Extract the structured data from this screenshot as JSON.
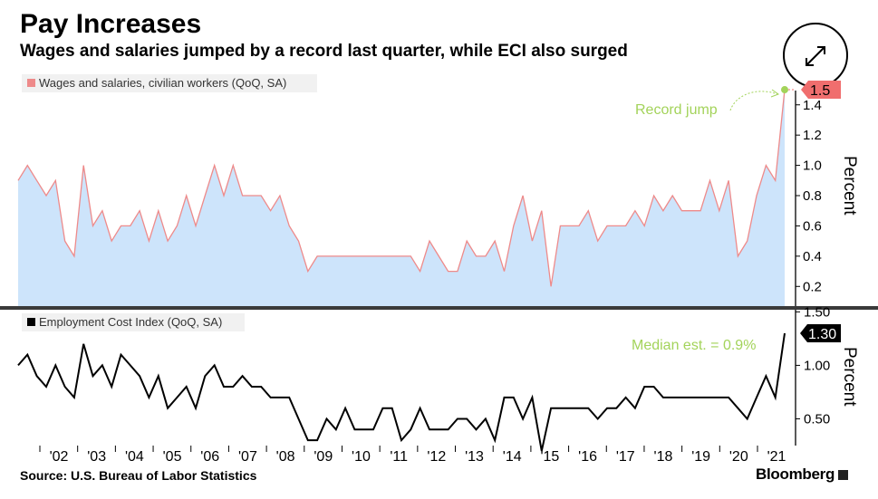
{
  "header": {
    "title": "Pay Increases",
    "subtitle": "Wages and salaries jumped by a record last quarter, while ECI also surged"
  },
  "footer": {
    "source": "Source: U.S. Bureau of Labor Statistics",
    "brand": "Bloomberg"
  },
  "icons": {
    "expand": "expand-arrows-icon",
    "brand_mark": "bloomberg-square-icon"
  },
  "colors": {
    "wages_fill": "#cde4fb",
    "wages_line": "#ee8a8a",
    "eci_line": "#000000",
    "annotation": "#a3d35a",
    "badge_red": "#f06e6e",
    "separator": "#3a3a3a"
  },
  "chart_data": [
    {
      "type": "area",
      "legend": "Wages and salaries, civilian workers (QoQ, SA)",
      "ylabel": "Percent",
      "ylim": [
        0.07,
        1.59
      ],
      "yticks": [
        "0.2",
        "0.4",
        "0.6",
        "0.8",
        "1.0",
        "1.2",
        "1.4"
      ],
      "last_value_label": "1.5",
      "annotation": "Record jump",
      "series": [
        {
          "values": [
            0.9,
            1.0,
            0.9,
            0.8,
            0.9,
            0.5,
            0.4,
            1.0,
            0.6,
            0.7,
            0.5,
            0.6,
            0.6,
            0.7,
            0.5,
            0.7,
            0.5,
            0.6,
            0.8,
            0.6,
            0.8,
            1.0,
            0.8,
            1.0,
            0.8,
            0.8,
            0.8,
            0.7,
            0.8,
            0.6,
            0.5,
            0.3,
            0.4,
            0.4,
            0.4,
            0.4,
            0.4,
            0.4,
            0.4,
            0.4,
            0.4,
            0.4,
            0.4,
            0.3,
            0.5,
            0.4,
            0.3,
            0.3,
            0.5,
            0.4,
            0.4,
            0.5,
            0.3,
            0.6,
            0.8,
            0.5,
            0.7,
            0.2,
            0.6,
            0.6,
            0.6,
            0.7,
            0.5,
            0.6,
            0.6,
            0.6,
            0.7,
            0.6,
            0.8,
            0.7,
            0.8,
            0.7,
            0.7,
            0.7,
            0.9,
            0.7,
            0.9,
            0.4,
            0.5,
            0.8,
            1.0,
            0.9,
            1.5
          ]
        }
      ]
    },
    {
      "type": "line",
      "legend": "Employment Cost Index (QoQ, SA)",
      "ylabel": "Percent",
      "ylim": [
        0.25,
        1.52
      ],
      "yticks": [
        "0.50",
        "1.00",
        "1.50"
      ],
      "last_value_label": "1.30",
      "annotation": "Median est. = 0.9%",
      "series": [
        {
          "values": [
            1.0,
            1.1,
            0.9,
            0.8,
            1.0,
            0.8,
            0.7,
            1.2,
            0.9,
            1.0,
            0.8,
            1.1,
            1.0,
            0.9,
            0.7,
            0.9,
            0.6,
            0.7,
            0.8,
            0.6,
            0.9,
            1.0,
            0.8,
            0.8,
            0.9,
            0.8,
            0.8,
            0.7,
            0.7,
            0.7,
            0.5,
            0.3,
            0.3,
            0.5,
            0.4,
            0.6,
            0.4,
            0.4,
            0.4,
            0.6,
            0.6,
            0.3,
            0.4,
            0.6,
            0.4,
            0.4,
            0.4,
            0.5,
            0.5,
            0.4,
            0.5,
            0.3,
            0.7,
            0.7,
            0.5,
            0.7,
            0.2,
            0.6,
            0.6,
            0.6,
            0.6,
            0.6,
            0.5,
            0.6,
            0.6,
            0.7,
            0.6,
            0.8,
            0.8,
            0.7,
            0.7,
            0.7,
            0.7,
            0.7,
            0.7,
            0.7,
            0.7,
            0.6,
            0.5,
            0.7,
            0.9,
            0.7,
            1.3
          ]
        }
      ]
    }
  ],
  "x_axis": {
    "labels": [
      "'02",
      "'03",
      "'04",
      "'05",
      "'06",
      "'07",
      "'08",
      "'09",
      "'10",
      "'11",
      "'12",
      "'13",
      "'14",
      "'15",
      "'16",
      "'17",
      "'18",
      "'19",
      "'20",
      "'21"
    ]
  }
}
